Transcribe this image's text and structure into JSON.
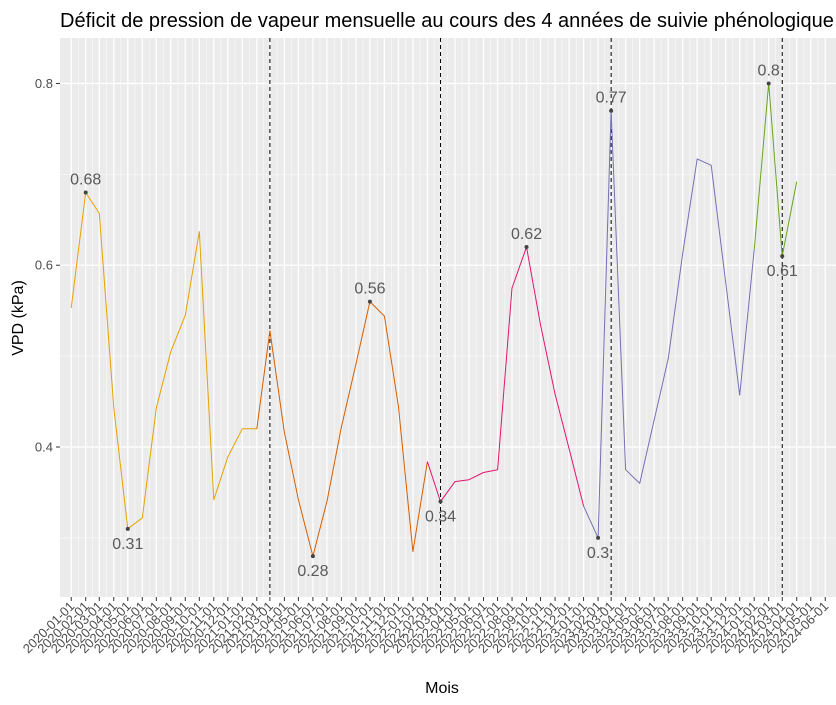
{
  "chart_data": {
    "type": "line",
    "title": "Déficit de pression de vapeur mensuelle au cours des 4 années de suivie phénologique",
    "xlabel": "Mois",
    "ylabel": "VPD (kPa)",
    "ylim": [
      0.235,
      0.85
    ],
    "y_ticks": [
      0.4,
      0.6,
      0.8
    ],
    "y_tick_labels": [
      "0.4",
      "0.6",
      "0.8"
    ],
    "grid": true,
    "legend": "none",
    "x_ticks": [
      "2020-01-01",
      "2020-02-01",
      "2020-03-01",
      "2020-04-01",
      "2020-05-01",
      "2020-06-01",
      "2020-07-01",
      "2020-08-01",
      "2020-09-01",
      "2020-10-01",
      "2020-11-01",
      "2020-12-01",
      "2021-01-01",
      "2021-02-01",
      "2021-03-01",
      "2021-04-01",
      "2021-05-01",
      "2021-06-01",
      "2021-07-01",
      "2021-08-01",
      "2021-09-01",
      "2021-10-01",
      "2021-11-01",
      "2021-12-01",
      "2022-01-01",
      "2022-02-01",
      "2022-03-01",
      "2022-04-01",
      "2022-05-01",
      "2022-06-01",
      "2022-07-01",
      "2022-08-01",
      "2022-09-01",
      "2022-10-01",
      "2022-11-01",
      "2022-12-01",
      "2023-01-01",
      "2023-02-01",
      "2023-03-01",
      "2023-04-01",
      "2023-05-01",
      "2023-06-01",
      "2023-07-01",
      "2023-08-01",
      "2023-09-01",
      "2023-10-01",
      "2023-11-01",
      "2023-12-01",
      "2024-01-01",
      "2024-02-01",
      "2024-03-01",
      "2024-04-01",
      "2024-05-01",
      "2024-06-01"
    ],
    "x_domain": [
      "2019-12-08",
      "2024-06-24"
    ],
    "vlines": [
      "2021-03-01",
      "2022-03-01",
      "2023-03-01",
      "2024-03-01"
    ],
    "series": [
      {
        "color": "#E6A100",
        "points": [
          [
            "2020-01-01",
            0.553
          ],
          [
            "2020-02-01",
            0.68
          ],
          [
            "2020-03-01",
            0.657
          ],
          [
            "2020-04-01",
            0.443
          ],
          [
            "2020-05-01",
            0.31
          ],
          [
            "2020-06-01",
            0.322
          ],
          [
            "2020-07-01",
            0.443
          ],
          [
            "2020-08-01",
            0.505
          ],
          [
            "2020-09-01",
            0.545
          ],
          [
            "2020-10-01",
            0.637
          ],
          [
            "2020-11-01",
            0.342
          ],
          [
            "2020-12-01",
            0.389
          ],
          [
            "2021-01-01",
            0.42
          ],
          [
            "2021-02-01",
            0.42
          ]
        ]
      },
      {
        "color": "#D55E00",
        "points": [
          [
            "2021-02-01",
            0.42
          ],
          [
            "2021-03-01",
            0.528
          ],
          [
            "2021-04-01",
            0.416
          ],
          [
            "2021-05-01",
            0.342
          ],
          [
            "2021-06-01",
            0.28
          ],
          [
            "2021-07-01",
            0.34
          ],
          [
            "2021-08-01",
            0.422
          ],
          [
            "2021-09-01",
            0.491
          ],
          [
            "2021-10-01",
            0.56
          ],
          [
            "2021-11-01",
            0.544
          ],
          [
            "2021-12-01",
            0.445
          ],
          [
            "2022-01-01",
            0.285
          ],
          [
            "2022-02-01",
            0.384
          ]
        ]
      },
      {
        "color": "#E0156E",
        "points": [
          [
            "2022-02-01",
            0.384
          ],
          [
            "2022-03-01",
            0.34
          ],
          [
            "2022-04-01",
            0.362
          ],
          [
            "2022-05-01",
            0.364
          ],
          [
            "2022-06-01",
            0.372
          ],
          [
            "2022-07-01",
            0.375
          ],
          [
            "2022-08-01",
            0.575
          ],
          [
            "2022-09-01",
            0.62
          ],
          [
            "2022-10-01",
            0.534
          ],
          [
            "2022-11-01",
            0.458
          ],
          [
            "2022-12-01",
            0.398
          ],
          [
            "2023-01-01",
            0.335
          ]
        ]
      },
      {
        "color": "#7570B3",
        "points": [
          [
            "2023-01-01",
            0.335
          ],
          [
            "2023-02-01",
            0.3
          ],
          [
            "2023-03-01",
            0.77
          ],
          [
            "2023-04-01",
            0.375
          ],
          [
            "2023-05-01",
            0.36
          ],
          [
            "2023-06-01",
            0.43
          ],
          [
            "2023-07-01",
            0.497
          ],
          [
            "2023-08-01",
            0.613
          ],
          [
            "2023-09-01",
            0.717
          ],
          [
            "2023-10-01",
            0.71
          ],
          [
            "2023-11-01",
            0.581
          ],
          [
            "2023-12-01",
            0.457
          ],
          [
            "2024-01-01",
            0.617
          ]
        ]
      },
      {
        "color": "#66A61E",
        "points": [
          [
            "2024-01-01",
            0.617
          ],
          [
            "2024-02-01",
            0.8
          ],
          [
            "2024-03-01",
            0.61
          ],
          [
            "2024-04-01",
            0.692
          ]
        ]
      }
    ],
    "annotations": [
      {
        "x": "2020-02-01",
        "y": 0.68,
        "label": "0.68",
        "position": "above"
      },
      {
        "x": "2020-05-01",
        "y": 0.31,
        "label": "0.31",
        "position": "below"
      },
      {
        "x": "2021-06-01",
        "y": 0.28,
        "label": "0.28",
        "position": "below"
      },
      {
        "x": "2021-10-01",
        "y": 0.56,
        "label": "0.56",
        "position": "above"
      },
      {
        "x": "2022-03-01",
        "y": 0.34,
        "label": "0.34",
        "position": "below"
      },
      {
        "x": "2022-09-01",
        "y": 0.62,
        "label": "0.62",
        "position": "above"
      },
      {
        "x": "2023-02-01",
        "y": 0.3,
        "label": "0.3",
        "position": "below"
      },
      {
        "x": "2023-03-01",
        "y": 0.77,
        "label": "0.77",
        "position": "above"
      },
      {
        "x": "2024-02-01",
        "y": 0.8,
        "label": "0.8",
        "position": "above"
      },
      {
        "x": "2024-03-01",
        "y": 0.61,
        "label": "0.61",
        "position": "below"
      }
    ]
  }
}
